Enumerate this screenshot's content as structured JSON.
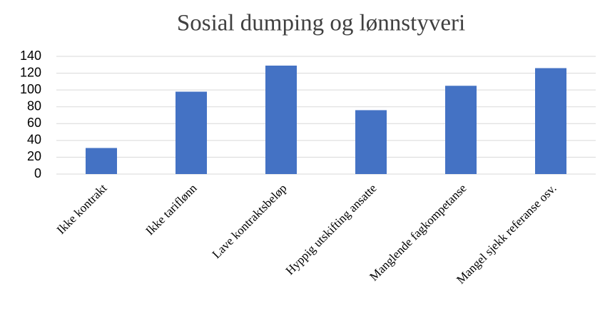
{
  "chart_data": {
    "type": "bar",
    "title": "Sosial dumping og lønnstyveri",
    "categories": [
      "Ikke kontrakt",
      "Ikke tariflønn",
      "Lave kontraktsbeløp",
      "Hyppig utskifting ansatte",
      "Manglende fagkompetanse",
      "Mangel sjekk referanse osv."
    ],
    "values": [
      31,
      98,
      129,
      76,
      105,
      126
    ],
    "color": "#4472c4",
    "ylim": [
      0,
      140
    ],
    "yticks": [
      0,
      20,
      40,
      60,
      80,
      100,
      120,
      140
    ],
    "grid": true
  }
}
